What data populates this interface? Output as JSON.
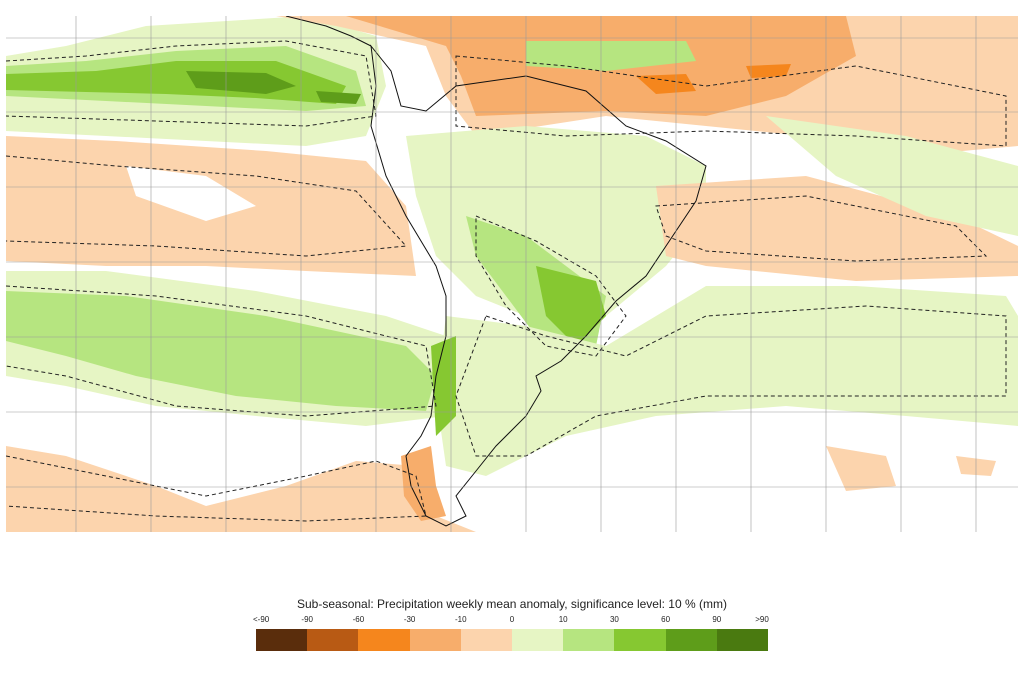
{
  "legend": {
    "title": "Sub-seasonal: Precipitation weekly mean anomaly, significance level: 10 % (mm)",
    "labels": [
      "<-90",
      "-90",
      "-60",
      "-30",
      "-10",
      "0",
      "10",
      "30",
      "60",
      "90",
      ">90"
    ],
    "colors": [
      "#5a2d0c",
      "#b85a14",
      "#f5861d",
      "#f7ad6b",
      "#fcd4ad",
      "#e6f5c4",
      "#b6e580",
      "#86c831",
      "#5e9d1a",
      "#4a7a10"
    ]
  },
  "map": {
    "region": "South America and surrounding oceans",
    "colors": {
      "dry_light": "#fcd4ad",
      "dry_mid": "#f7ad6b",
      "dry_strong": "#f5861d",
      "wet_light": "#e6f5c4",
      "wet_mid": "#b6e580",
      "wet_strong": "#86c831",
      "wet_very": "#5e9d1a",
      "coast": "#111111",
      "grid": "#9a9a9a",
      "significance_contour": "#222222"
    }
  }
}
